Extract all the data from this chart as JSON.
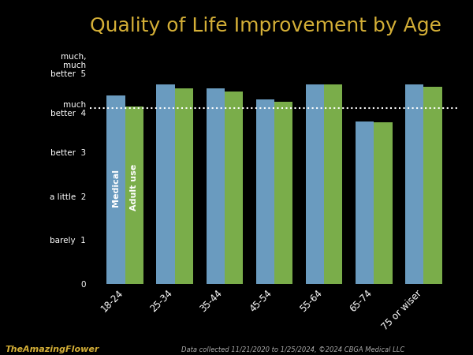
{
  "title": "Quality of Life Improvement by Age",
  "background_color": "#000000",
  "title_color": "#d4af37",
  "axis_text_color": "#ffffff",
  "bar_color_medical": "#6a9bbf",
  "bar_color_adult": "#7aad4a",
  "categories": [
    "18-24",
    "25-34",
    "35-44",
    "45-54",
    "55-64",
    "65-74",
    "75 or wiser"
  ],
  "medical_values": [
    4.3,
    4.55,
    4.45,
    4.2,
    4.55,
    3.7,
    4.55
  ],
  "adult_values": [
    4.05,
    4.45,
    4.38,
    4.15,
    4.55,
    3.68,
    4.5
  ],
  "ytick_positions": [
    0,
    1,
    2,
    3,
    4,
    5
  ],
  "ytick_labels": [
    "0",
    "barely  1",
    "a little  2",
    "better  3",
    "much\nbetter  4",
    "much,\nmuch\nbetter  5"
  ],
  "ylim": [
    0,
    5.5
  ],
  "dotted_line_y": 4.0,
  "legend_label_medical": "Medical",
  "legend_label_adult": "Adult use",
  "footnote": "Data collected 11/21/2020 to 1/25/2024, ©2024 CBGA Medical LLC",
  "footnote_color": "#aaaaaa",
  "title_fontsize": 18
}
